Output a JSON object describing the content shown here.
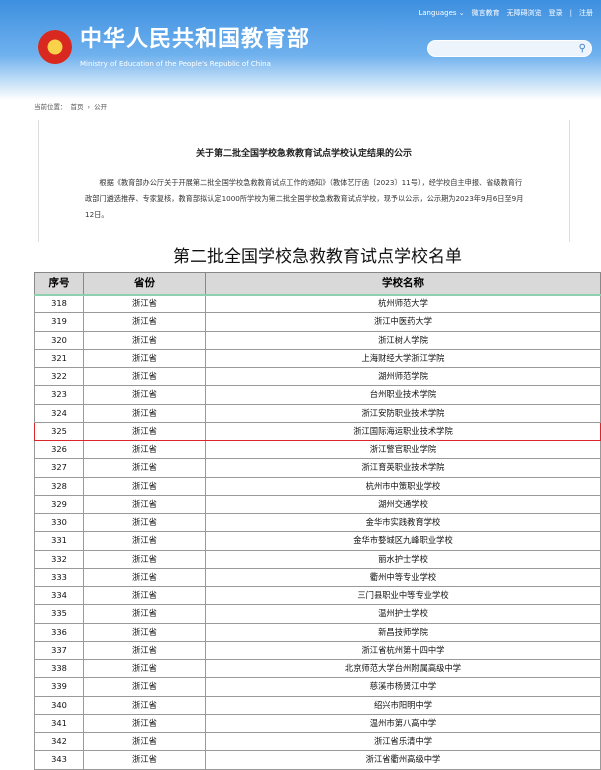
{
  "header": {
    "links": [
      "Languages ⌄",
      "微言教育",
      "无障碍浏览",
      "登录",
      "|",
      "注册"
    ],
    "title": "中华人民共和国教育部",
    "subtitle": "Ministry of Education of the People's Republic of China",
    "search_placeholder": ""
  },
  "breadcrumb": [
    "当前位置：",
    "首页",
    "›",
    "公开"
  ],
  "article": {
    "title": "关于第二批全国学校急救教育试点学校认定结果的公示",
    "body": "根据《教育部办公厅关于开展第二批全国学校急救教育试点工作的通知》（教体艺厅函〔2023〕11号），经学校自主申报、省级教育行政部门遴选推荐、专家复核，教育部拟认定1000所学校为第二批全国学校急救教育试点学校，现予以公示，公示期为2023年9月6日至9月12日。"
  },
  "table": {
    "title": "第二批全国学校急救教育试点学校名单",
    "headers": [
      "序号",
      "省份",
      "学校名称"
    ],
    "highlight_color": "#d9262b",
    "highlight_row": "325",
    "rows": [
      [
        "318",
        "浙江省",
        "杭州师范大学"
      ],
      [
        "319",
        "浙江省",
        "浙江中医药大学"
      ],
      [
        "320",
        "浙江省",
        "浙江树人学院"
      ],
      [
        "321",
        "浙江省",
        "上海财经大学浙江学院"
      ],
      [
        "322",
        "浙江省",
        "湖州师范学院"
      ],
      [
        "323",
        "浙江省",
        "台州职业技术学院"
      ],
      [
        "324",
        "浙江省",
        "浙江安防职业技术学院"
      ],
      [
        "325",
        "浙江省",
        "浙江国际海运职业技术学院"
      ],
      [
        "326",
        "浙江省",
        "浙江警官职业学院"
      ],
      [
        "327",
        "浙江省",
        "浙江育英职业技术学院"
      ],
      [
        "328",
        "浙江省",
        "杭州市中策职业学校"
      ],
      [
        "329",
        "浙江省",
        "湖州交通学校"
      ],
      [
        "330",
        "浙江省",
        "金华市实践教育学校"
      ],
      [
        "331",
        "浙江省",
        "金华市婺城区九峰职业学校"
      ],
      [
        "332",
        "浙江省",
        "丽水护士学校"
      ],
      [
        "333",
        "浙江省",
        "衢州中等专业学校"
      ],
      [
        "334",
        "浙江省",
        "三门县职业中等专业学校"
      ],
      [
        "335",
        "浙江省",
        "温州护士学校"
      ],
      [
        "336",
        "浙江省",
        "新昌技师学院"
      ],
      [
        "337",
        "浙江省",
        "浙江省杭州第十四中学"
      ],
      [
        "338",
        "浙江省",
        "北京师范大学台州附属高级中学"
      ],
      [
        "339",
        "浙江省",
        "慈溪市杨贤江中学"
      ],
      [
        "340",
        "浙江省",
        "绍兴市阳明中学"
      ],
      [
        "341",
        "浙江省",
        "温州市第八高中学"
      ],
      [
        "342",
        "浙江省",
        "浙江省乐清中学"
      ],
      [
        "343",
        "浙江省",
        "浙江省衢州高级中学"
      ]
    ]
  }
}
